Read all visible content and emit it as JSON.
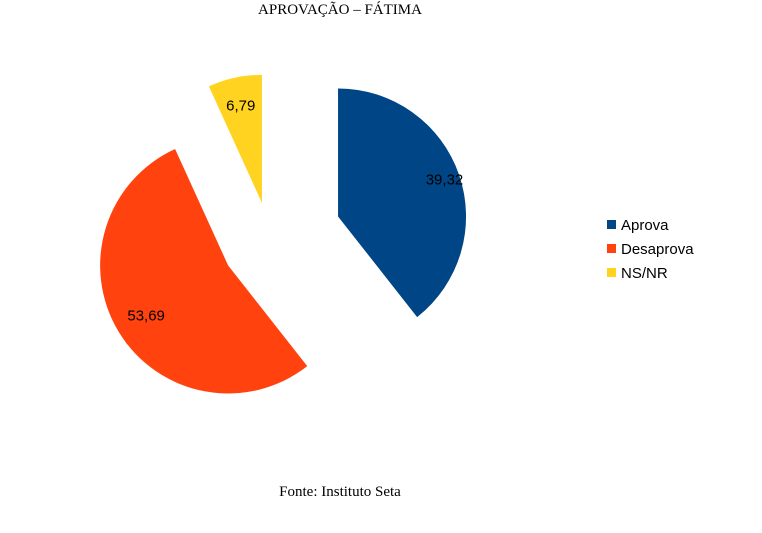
{
  "chart_data": {
    "type": "pie",
    "title": "APROVAÇÃO – FÁTIMA",
    "categories": [
      "Aprova",
      "Desaprova",
      "NS/NR"
    ],
    "values": [
      39.32,
      53.69,
      6.79
    ],
    "value_labels": [
      "39,32",
      "53,69",
      "6,79"
    ],
    "colors": [
      "#004586",
      "#ff420e",
      "#ffd320"
    ],
    "exploded": true,
    "legend_position": "right"
  },
  "source": "Fonte: Instituto Seta"
}
